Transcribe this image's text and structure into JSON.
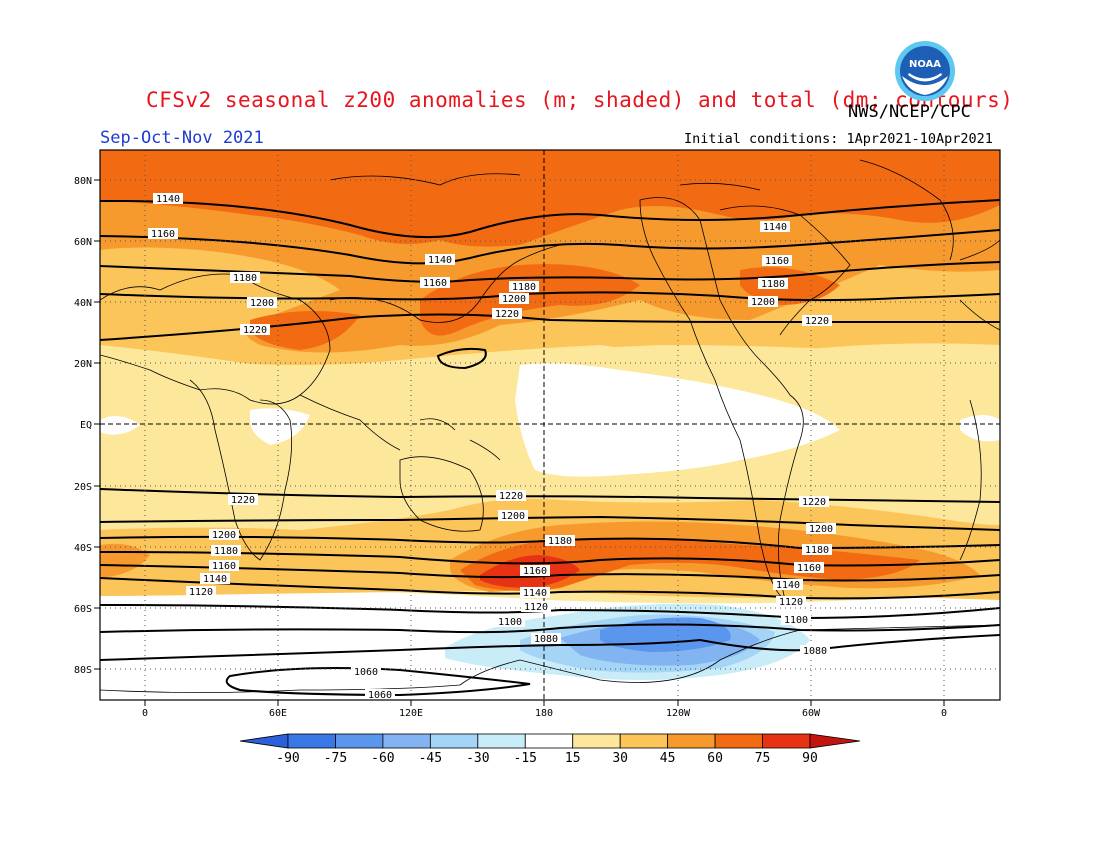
{
  "title": "CFSv2 seasonal z200 anomalies (m; shaded) and total (dm; contours)",
  "agency": "NWS/NCEP/CPC",
  "season": "Sep-Oct-Nov 2021",
  "init_conditions": "Initial conditions: 1Apr2021-10Apr2021",
  "logo": {
    "text": "NOAA",
    "colors": [
      "#1d5fb4",
      "#5ec8f0",
      "#ffffff"
    ]
  },
  "axes": {
    "lat_labels": [
      "80N",
      "60N",
      "40N",
      "20N",
      "EQ",
      "20S",
      "40S",
      "60S",
      "80S"
    ],
    "lon_labels": [
      "0",
      "60E",
      "120E",
      "180",
      "120W",
      "60W",
      "0"
    ]
  },
  "contour_levels": {
    "north": [
      "1140",
      "1160",
      "1180",
      "1200",
      "1220"
    ],
    "south": [
      "1220",
      "1200",
      "1180",
      "1160",
      "1140",
      "1120",
      "1100",
      "1080"
    ],
    "antarctic_closed": "1060"
  },
  "colorbar": {
    "ticks": [
      "-90",
      "-75",
      "-60",
      "-45",
      "-30",
      "-15",
      "15",
      "30",
      "45",
      "60",
      "75",
      "90"
    ],
    "colors": [
      "#2c5fdc",
      "#3a78e6",
      "#5a96ee",
      "#82b4f2",
      "#a4d4f6",
      "#c8ecf8",
      "#ffffff",
      "#fde79a",
      "#fbc55a",
      "#f79a2e",
      "#f26a12",
      "#e83214",
      "#c41410"
    ]
  }
}
